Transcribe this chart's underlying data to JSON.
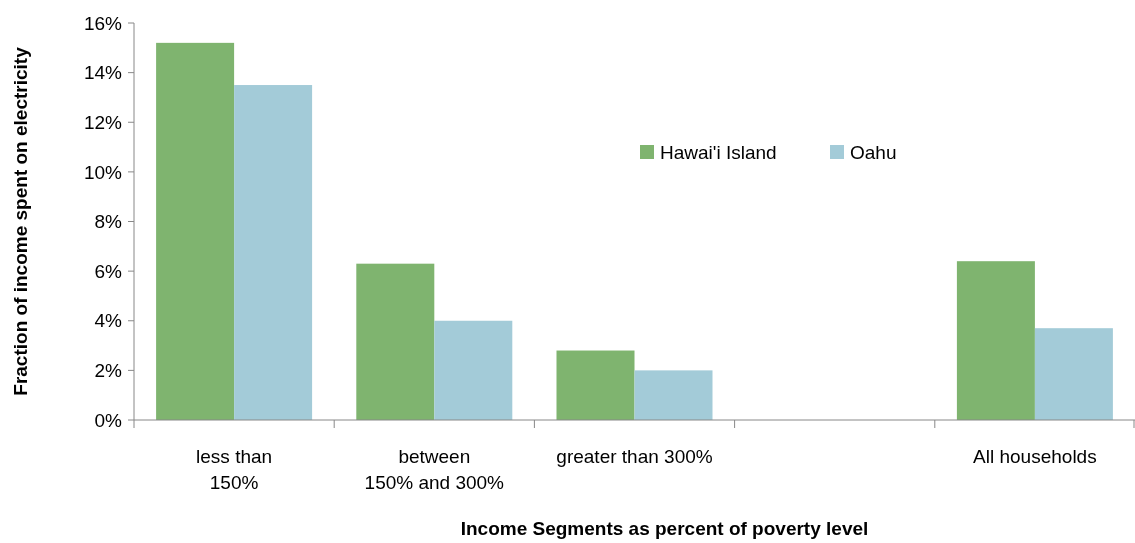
{
  "chart_data": {
    "type": "bar",
    "xlabel": "Income Segments as percent of poverty level",
    "ylabel": "Fraction of income spent on electricity",
    "categories": [
      "less than\n150%",
      "between\n150% and 300%",
      "greater than 300%",
      null,
      "All households"
    ],
    "series": [
      {
        "name": "Hawai'i Island",
        "color": "#7fb46f",
        "values": [
          15.2,
          6.3,
          2.8,
          null,
          6.4
        ]
      },
      {
        "name": "Oahu",
        "color": "#a3cbd8",
        "values": [
          13.5,
          4.0,
          2.0,
          null,
          3.7
        ]
      }
    ],
    "ylim": [
      0,
      16
    ],
    "yticks": [
      {
        "value": 0,
        "label": "0%"
      },
      {
        "value": 2,
        "label": "2%"
      },
      {
        "value": 4,
        "label": "4%"
      },
      {
        "value": 6,
        "label": "6%"
      },
      {
        "value": 8,
        "label": "8%"
      },
      {
        "value": 10,
        "label": "10%"
      },
      {
        "value": 12,
        "label": "12%"
      },
      {
        "value": 14,
        "label": "14%"
      },
      {
        "value": 16,
        "label": "16%"
      }
    ],
    "legend": "top right"
  }
}
